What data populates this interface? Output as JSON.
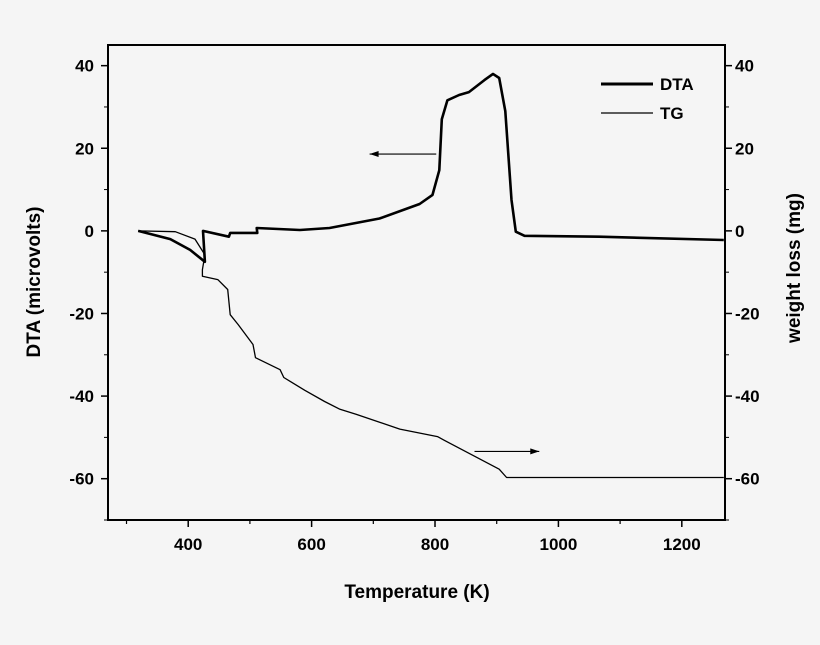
{
  "chart_data": {
    "type": "line",
    "xlabel": "Temperature (K)",
    "ylabel": "DTA (microvolts)",
    "y2label": "weight loss (mg)",
    "xlim": [
      270,
      1270
    ],
    "ylim": [
      -70,
      45
    ],
    "y2lim": [
      -70,
      45
    ],
    "xticks": [
      400,
      600,
      800,
      1000,
      1200
    ],
    "yticks": [
      40,
      20,
      0,
      -20,
      -40,
      -60
    ],
    "y2ticks": [
      40,
      20,
      0,
      -20,
      -40,
      -60
    ],
    "xtick_labels": [
      "400",
      "600",
      "800",
      "1000",
      "1200"
    ],
    "ytick_labels": [
      "40",
      "20",
      "0",
      "-20",
      "-40",
      "-60"
    ],
    "grid": false,
    "legend_position": "top-right",
    "series": [
      {
        "name": "DTA",
        "axis": "left",
        "style": "thick",
        "x": [
          319,
          371,
          403,
          427,
          424,
          466,
          468,
          512,
          511,
          581,
          629,
          710,
          775,
          796,
          807,
          811,
          820,
          839,
          855,
          880,
          894,
          904,
          914,
          924,
          931,
          945,
          1066,
          1268
        ],
        "y": [
          0,
          -2,
          -4.6,
          -7.5,
          0,
          -1.4,
          -0.5,
          -0.5,
          0.7,
          0.2,
          0.7,
          3,
          6.5,
          8.7,
          14.7,
          27,
          31.6,
          32.9,
          33.6,
          36.5,
          38,
          37,
          29,
          7.5,
          -0.2,
          -1.2,
          -1.4,
          -2.2
        ]
      },
      {
        "name": "TG",
        "axis": "right",
        "style": "thin",
        "x": [
          319,
          379,
          411,
          427,
          423,
          423,
          448,
          464,
          468,
          481,
          505,
          509,
          549,
          555,
          589,
          621,
          646,
          672,
          743,
          804,
          815,
          904,
          916,
          1268
        ],
        "y": [
          0,
          -0.2,
          -2,
          -5.8,
          -9.4,
          -11,
          -11.8,
          -14.2,
          -20.3,
          -22.7,
          -27.5,
          -30.7,
          -33.6,
          -35.5,
          -38.6,
          -41.3,
          -43.2,
          -44.4,
          -48,
          -49.8,
          -50.7,
          -57.7,
          -59.7,
          -59.7
        ]
      }
    ],
    "annotations": [
      {
        "type": "arrow",
        "from": [
          802,
          18.6
        ],
        "to": [
          694,
          18.6
        ],
        "points_to": "left axis"
      },
      {
        "type": "arrow",
        "from": [
          864,
          -53.4
        ],
        "to": [
          969,
          -53.4
        ],
        "points_to": "right axis"
      }
    ]
  }
}
